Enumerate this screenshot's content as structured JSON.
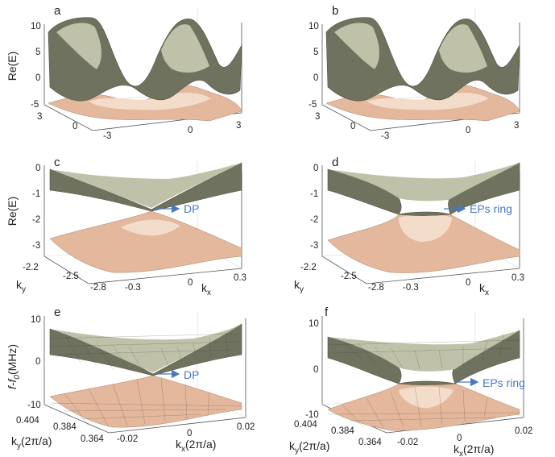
{
  "panels": [
    {
      "id": "a",
      "label": "a",
      "ylabel": "Re(E)",
      "z_ticks": [
        "10",
        "5",
        "0",
        "-5"
      ],
      "ky_ticks": [
        "3",
        "0",
        "-3"
      ],
      "kx_ticks": [
        "-3",
        "0",
        "3"
      ]
    },
    {
      "id": "b",
      "label": "b",
      "ylabel": "",
      "z_ticks": [
        "10",
        "5",
        "0",
        "-5"
      ],
      "ky_ticks": [
        "3",
        "0",
        "-3"
      ],
      "kx_ticks": [
        "-3",
        "0",
        "3"
      ]
    },
    {
      "id": "c",
      "label": "c",
      "ylabel": "Re(E)",
      "z_ticks": [
        "0",
        "-1",
        "-2",
        "-3"
      ],
      "ky_ticks": [
        "-2.2",
        "-2.5",
        "-2.8"
      ],
      "kx_ticks": [
        "-0.3",
        "0",
        "0.3"
      ],
      "ky_label": "k",
      "ky_sub": "y",
      "kx_label": "k",
      "kx_sub": "x",
      "annotation": "DP"
    },
    {
      "id": "d",
      "label": "d",
      "ylabel": "",
      "z_ticks": [
        "0",
        "-1",
        "-2",
        "-3"
      ],
      "ky_ticks": [
        "-2.2",
        "-2.5",
        "-2.8"
      ],
      "kx_ticks": [
        "-0.3",
        "0",
        "0.3"
      ],
      "ky_label": "k",
      "ky_sub": "y",
      "kx_label": "k",
      "kx_sub": "x",
      "annotation": "EPs ring"
    },
    {
      "id": "e",
      "label": "e",
      "ylabel_main": "f-f",
      "ylabel_sub": "0",
      "ylabel_tail": "(MHz)",
      "z_ticks": [
        "10",
        "0",
        "-10"
      ],
      "ky_ticks": [
        "0.404",
        "0.384",
        "0.364"
      ],
      "kx_ticks": [
        "-0.02",
        "0",
        "0.02"
      ],
      "ky_label": "k",
      "ky_sub": "y",
      "ky_unit": "(2π/a)",
      "kx_label": "k",
      "kx_sub": "x",
      "kx_unit": "(2π/a)",
      "annotation": "DP"
    },
    {
      "id": "f",
      "label": "f",
      "ylabel": "",
      "z_ticks": [
        "10",
        "0",
        "-10"
      ],
      "ky_ticks": [
        "0.404",
        "0.384",
        "0.364"
      ],
      "kx_ticks": [
        "-0.02",
        "0",
        "0.02"
      ],
      "ky_label": "k",
      "ky_sub": "y",
      "ky_unit": "(2π/a)",
      "kx_label": "k",
      "kx_sub": "x",
      "kx_unit": "(2π/a)",
      "annotation": "EPs ring"
    }
  ],
  "colors": {
    "upper_band": "#6f725e",
    "lower_band": "#e3b89c",
    "annotation": "#4a78c0"
  }
}
